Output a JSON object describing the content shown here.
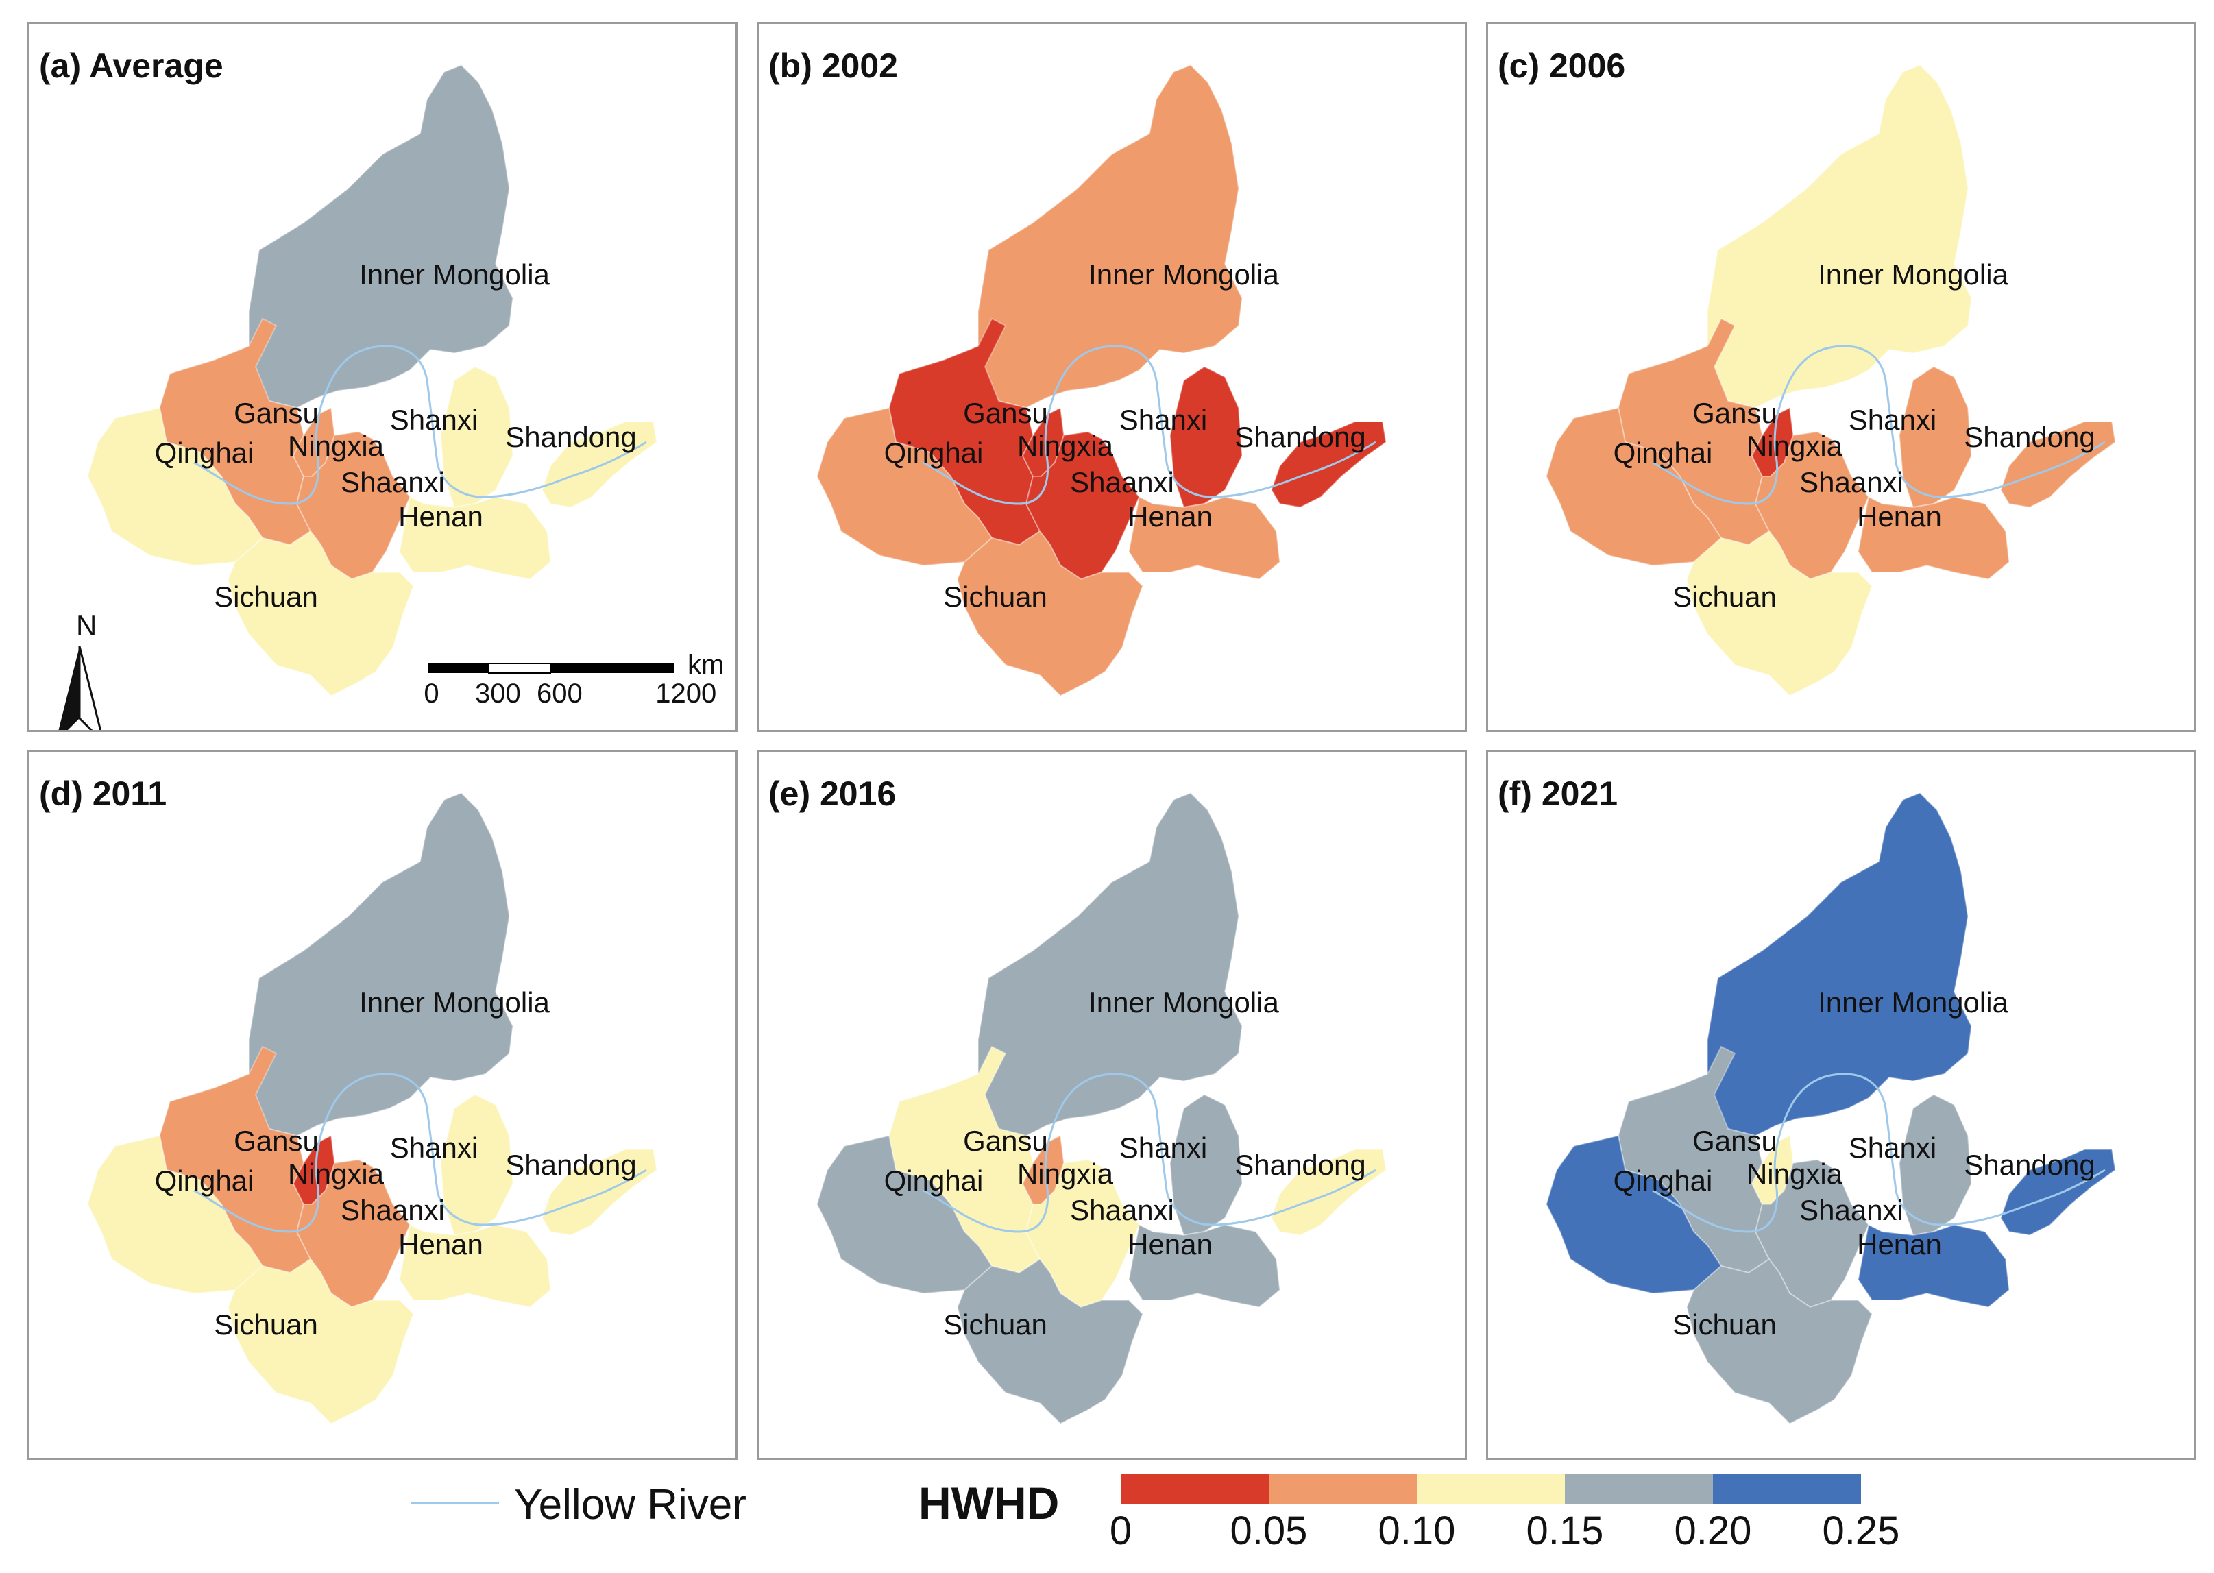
{
  "panels": [
    {
      "title": "(a)  Average",
      "fills": {
        "inner_mongolia": "#9eacb6",
        "gansu": "#ef9b6b",
        "qinghai": "#fbf4b6",
        "ningxia": "#ef9b6b",
        "shaanxi": "#ef9b6b",
        "shanxi": "#fbf4b6",
        "henan": "#fbf4b6",
        "shandong": "#fbf4b6",
        "sichuan": "#fbf4b6"
      }
    },
    {
      "title": "(b) 2002",
      "fills": {
        "inner_mongolia": "#ef9b6b",
        "gansu": "#d93b2b",
        "qinghai": "#ef9b6b",
        "ningxia": "#d93b2b",
        "shaanxi": "#d93b2b",
        "shanxi": "#d93b2b",
        "henan": "#ef9b6b",
        "shandong": "#d93b2b",
        "sichuan": "#ef9b6b"
      }
    },
    {
      "title": "(c) 2006",
      "fills": {
        "inner_mongolia": "#fbf4b6",
        "gansu": "#ef9b6b",
        "qinghai": "#ef9b6b",
        "ningxia": "#d93b2b",
        "shaanxi": "#ef9b6b",
        "shanxi": "#ef9b6b",
        "henan": "#ef9b6b",
        "shandong": "#ef9b6b",
        "sichuan": "#fbf4b6"
      }
    },
    {
      "title": "(d) 2011",
      "fills": {
        "inner_mongolia": "#9eacb6",
        "gansu": "#ef9b6b",
        "qinghai": "#fbf4b6",
        "ningxia": "#d93b2b",
        "shaanxi": "#ef9b6b",
        "shanxi": "#fbf4b6",
        "henan": "#fbf4b6",
        "shandong": "#fbf4b6",
        "sichuan": "#fbf4b6"
      }
    },
    {
      "title": "(e) 2016",
      "fills": {
        "inner_mongolia": "#9eacb6",
        "gansu": "#fbf4b6",
        "qinghai": "#9eacb6",
        "ningxia": "#ef9b6b",
        "shaanxi": "#fbf4b6",
        "shanxi": "#9eacb6",
        "henan": "#9eacb6",
        "shandong": "#fbf4b6",
        "sichuan": "#9eacb6"
      }
    },
    {
      "title": "(f) 2021",
      "fills": {
        "inner_mongolia": "#4472b8",
        "gansu": "#9eacb6",
        "qinghai": "#4472b8",
        "ningxia": "#fbf4b6",
        "shaanxi": "#9eacb6",
        "shanxi": "#9eacb6",
        "henan": "#4472b8",
        "shandong": "#4472b8",
        "sichuan": "#9eacb6"
      }
    }
  ],
  "province_labels": {
    "inner_mongolia": "Inner Mongolia",
    "gansu": "Gansu",
    "qinghai": "Qinghai",
    "ningxia": "Ningxia",
    "shaanxi": "Shaanxi",
    "shanxi": "Shanxi",
    "henan": "Henan",
    "shandong": "Shandong",
    "sichuan": "Sichuan"
  },
  "north_arrow": {
    "label": "N"
  },
  "scale_bar": {
    "unit": "km",
    "ticks": [
      "0",
      "300",
      "600",
      "1200"
    ]
  },
  "legend": {
    "river_label": "Yellow River",
    "river_color": "#9ec9ea",
    "title": "HWHD",
    "bins": [
      {
        "from": 0,
        "to": 0.05,
        "color": "#d93b2b"
      },
      {
        "from": 0.05,
        "to": 0.1,
        "color": "#ef9b6b"
      },
      {
        "from": 0.1,
        "to": 0.15,
        "color": "#fbf4b6"
      },
      {
        "from": 0.15,
        "to": 0.2,
        "color": "#9eacb6"
      },
      {
        "from": 0.2,
        "to": 0.25,
        "color": "#4472b8"
      }
    ],
    "tick_labels": [
      "0",
      "0.05",
      "0.10",
      "0.15",
      "0.20",
      "0.25"
    ]
  }
}
